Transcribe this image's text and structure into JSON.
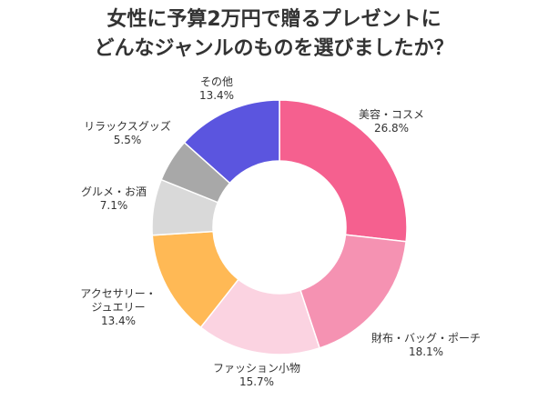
{
  "chart_data": {
    "type": "pie",
    "title_lines": [
      "女性に予算2万円で贈るプレゼントに",
      "どんなジャンルのものを選びましたか？"
    ],
    "donut": true,
    "slices": [
      {
        "label": "美容・コスメ",
        "value": 26.8,
        "value_text": "26.8%",
        "color": "#F5608F"
      },
      {
        "label": "財布・バッグ・ポーチ",
        "value": 18.1,
        "value_text": "18.1%",
        "color": "#F592B2"
      },
      {
        "label": "ファッション小物",
        "value": 15.7,
        "value_text": "15.7%",
        "color": "#FBD3E1"
      },
      {
        "label": "アクセサリー・ジュエリー",
        "value": 13.4,
        "value_text": "13.4%",
        "color": "#FFB955"
      },
      {
        "label": "グルメ・お酒",
        "value": 7.1,
        "value_text": "7.1%",
        "color": "#D9D9D9"
      },
      {
        "label": "リラックスグッズ",
        "value": 5.5,
        "value_text": "5.5%",
        "color": "#A8A8A8"
      },
      {
        "label": "その他",
        "value": 13.4,
        "value_text": "13.4%",
        "color": "#5B55DF"
      }
    ]
  }
}
